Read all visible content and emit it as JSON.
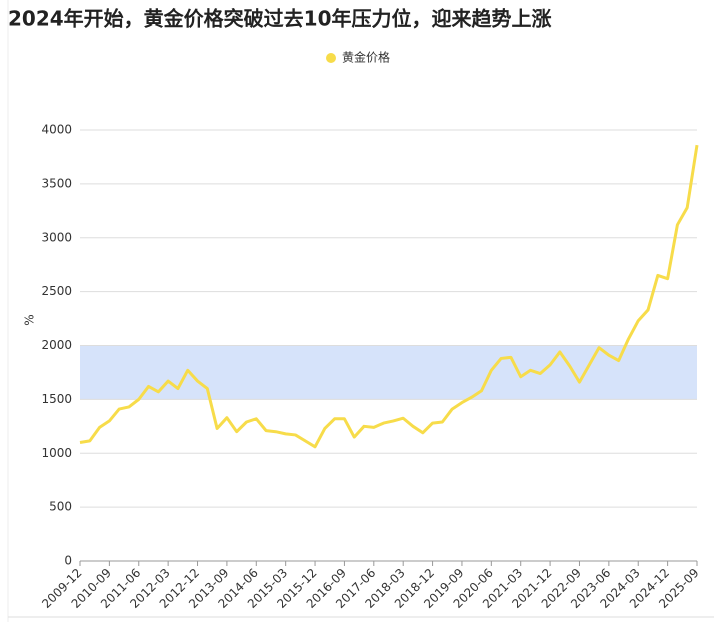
{
  "chart_data": {
    "type": "line",
    "title": "2024年开始，黄金价格突破过去10年压力位，迎来趋势上涨",
    "y_label": "%",
    "categories": [
      "2009-12",
      null,
      null,
      "2010-09",
      null,
      null,
      "2011-06",
      null,
      null,
      "2012-03",
      null,
      null,
      "2012-12",
      null,
      null,
      "2013-09",
      null,
      null,
      "2014-06",
      null,
      null,
      "2015-03",
      null,
      null,
      "2015-12",
      null,
      null,
      "2016-09",
      null,
      null,
      "2017-06",
      null,
      null,
      "2018-03",
      null,
      null,
      "2018-12",
      null,
      null,
      "2019-09",
      null,
      null,
      "2020-06",
      null,
      null,
      "2021-03",
      null,
      null,
      "2021-12",
      null,
      null,
      "2022-09",
      null,
      null,
      "2023-06",
      null,
      null,
      "2024-03",
      null,
      null,
      "2024-12",
      null,
      null,
      "2025-09"
    ],
    "series": [
      {
        "name": "黄金价格",
        "color": "#f7dc4a",
        "values": [
          1100,
          1115,
          1240,
          1300,
          1410,
          1430,
          1500,
          1620,
          1570,
          1670,
          1600,
          1770,
          1670,
          1600,
          1230,
          1330,
          1200,
          1290,
          1320,
          1210,
          1200,
          1180,
          1170,
          1115,
          1060,
          1230,
          1320,
          1320,
          1150,
          1250,
          1240,
          1280,
          1300,
          1325,
          1250,
          1190,
          1280,
          1290,
          1410,
          1470,
          1520,
          1580,
          1770,
          1880,
          1890,
          1710,
          1770,
          1740,
          1820,
          1940,
          1810,
          1660,
          1820,
          1980,
          1910,
          1860,
          2060,
          2230,
          2330,
          2650,
          2620,
          3120,
          3280,
          3860
        ]
      }
    ],
    "band": [
      1500,
      2000
    ],
    "band_color": "#d6e3fa",
    "ylim": [
      0,
      4000
    ],
    "yticks": [
      0,
      500,
      1000,
      1500,
      2000,
      2500,
      3000,
      3500,
      4000
    ],
    "grid": true,
    "legend": "top"
  }
}
